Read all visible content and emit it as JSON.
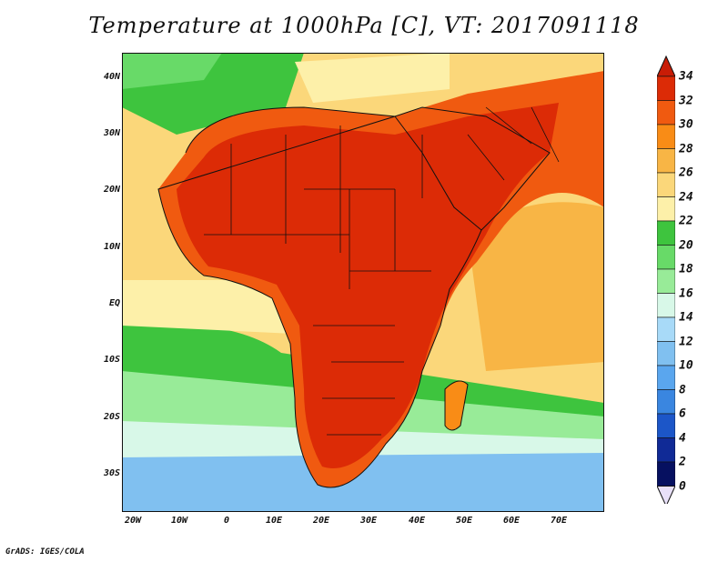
{
  "title": "Temperature at 1000hPa [C], VT: 2017091118",
  "credit": "GrADS: IGES/COLA",
  "lat_labels": [
    "40N",
    "30N",
    "20N",
    "10N",
    "EQ",
    "10S",
    "20S",
    "30S"
  ],
  "lon_labels": [
    "20W",
    "10W",
    "0",
    "10E",
    "20E",
    "30E",
    "40E",
    "50E",
    "60E",
    "70E"
  ],
  "colorbar": {
    "levels": [
      "34",
      "32",
      "30",
      "28",
      "26",
      "24",
      "22",
      "20",
      "18",
      "16",
      "14",
      "12",
      "10",
      "8",
      "6",
      "4",
      "2",
      "0"
    ],
    "colors": [
      "#dc2b06",
      "#f05a10",
      "#f98c16",
      "#f8b545",
      "#fbd77a",
      "#fdf0a9",
      "#3ec43e",
      "#68da68",
      "#98eb98",
      "#d8f8e8",
      "#a8daf8",
      "#80c0f0",
      "#5aa6ee",
      "#3a86e0",
      "#1c56c8",
      "#102a96",
      "#061060"
    ],
    "top_arrow_color": "#c81c06",
    "bottom_arrow_color": "#e8e0f8"
  }
}
